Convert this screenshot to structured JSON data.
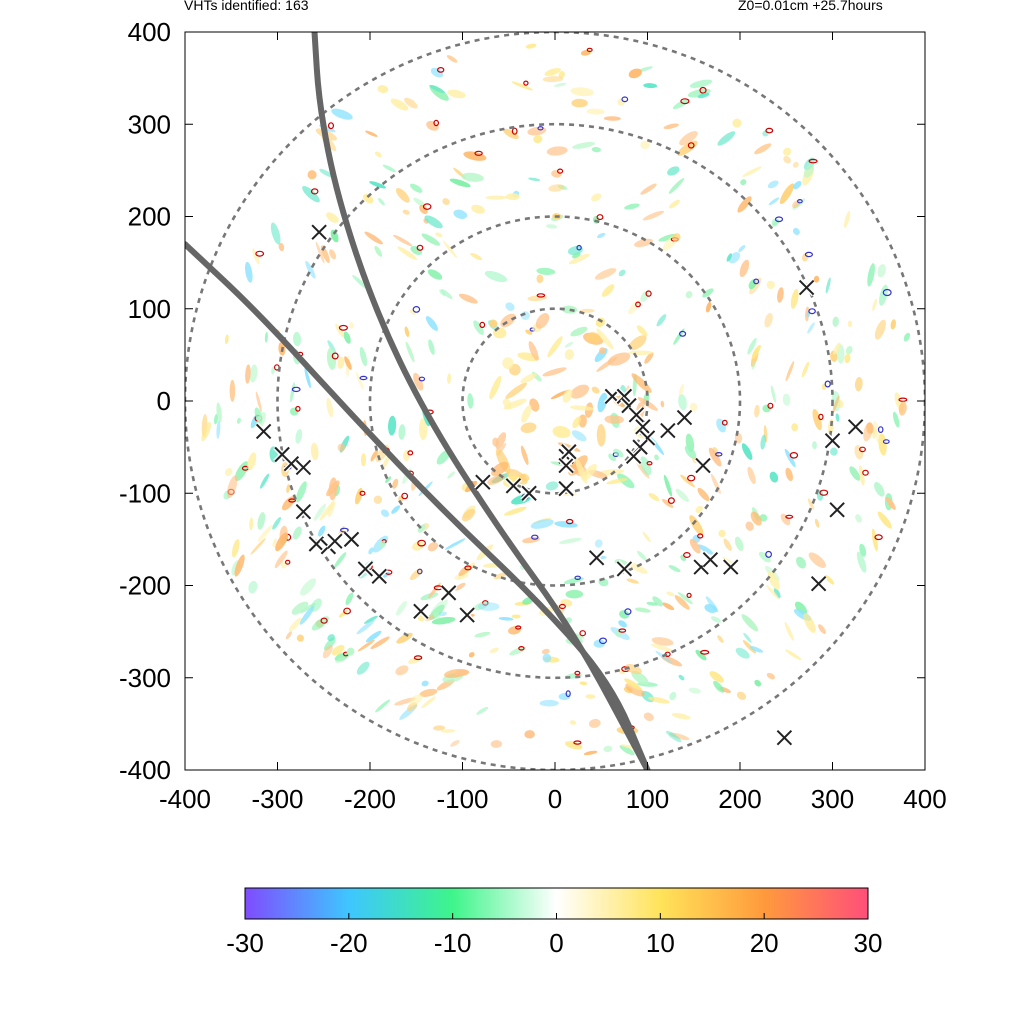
{
  "header": {
    "vht_text": "VHTs identified: 163",
    "run_text": "Z0=0.01cm  +25.7hours"
  },
  "colors": {
    "range_ring": "#777777",
    "track": "#666666",
    "contour_outer": "#cc0000",
    "contour_inner": "#3333cc",
    "vht_marker": "#222222",
    "colorbar_stops": [
      "#7f4cff",
      "#3ec6ff",
      "#3ef58a",
      "#ffffff",
      "#ffe35a",
      "#ff9a3c",
      "#ff4f7a"
    ]
  },
  "chart_data": {
    "type": "scatter",
    "title": "",
    "xlabel": "",
    "ylabel": "",
    "xlim": [
      -400,
      400
    ],
    "ylim": [
      -400,
      400
    ],
    "x_ticks": [
      -400,
      -300,
      -200,
      -100,
      0,
      100,
      200,
      300,
      400
    ],
    "y_ticks": [
      -400,
      -300,
      -200,
      -100,
      0,
      100,
      200,
      300,
      400
    ],
    "range_rings": [
      100,
      200,
      300,
      400
    ],
    "vht_count": 163,
    "vht_markers": [
      [
        -315,
        -33
      ],
      [
        -295,
        -58
      ],
      [
        -285,
        -68
      ],
      [
        -272,
        -72
      ],
      [
        -272,
        -120
      ],
      [
        -258,
        -155
      ],
      [
        -245,
        -158
      ],
      [
        -238,
        -152
      ],
      [
        -220,
        -150
      ],
      [
        -205,
        -182
      ],
      [
        -190,
        -190
      ],
      [
        -145,
        -228
      ],
      [
        -115,
        -208
      ],
      [
        -95,
        -232
      ],
      [
        -78,
        -88
      ],
      [
        -45,
        -92
      ],
      [
        -28,
        -100
      ],
      [
        12,
        -95
      ],
      [
        12,
        -60
      ],
      [
        12,
        -70
      ],
      [
        15,
        -55
      ],
      [
        62,
        5
      ],
      [
        75,
        5
      ],
      [
        80,
        -5
      ],
      [
        88,
        -15
      ],
      [
        95,
        -28
      ],
      [
        100,
        -40
      ],
      [
        92,
        -50
      ],
      [
        85,
        -60
      ],
      [
        122,
        -32
      ],
      [
        140,
        -18
      ],
      [
        160,
        -70
      ],
      [
        45,
        -170
      ],
      [
        75,
        -182
      ],
      [
        158,
        -180
      ],
      [
        168,
        -172
      ],
      [
        190,
        -180
      ],
      [
        272,
        123
      ],
      [
        300,
        -43
      ],
      [
        305,
        -118
      ],
      [
        325,
        -28
      ],
      [
        285,
        -198
      ],
      [
        248,
        -365
      ],
      [
        -255,
        183
      ]
    ],
    "storm_tracks": [
      {
        "points": [
          [
            -400,
            170
          ],
          [
            -320,
            95
          ],
          [
            -220,
            -15
          ],
          [
            -120,
            -120
          ],
          [
            -20,
            -215
          ],
          [
            60,
            -305
          ],
          [
            100,
            -400
          ]
        ]
      },
      {
        "points": [
          [
            -260,
            400
          ],
          [
            -255,
            320
          ],
          [
            -235,
            220
          ],
          [
            -195,
            100
          ],
          [
            -140,
            -15
          ],
          [
            -60,
            -140
          ],
          [
            20,
            -250
          ],
          [
            100,
            -400
          ]
        ]
      }
    ],
    "colorbar": {
      "min": -30,
      "max": 30,
      "ticks": [
        -30,
        -20,
        -10,
        0,
        10,
        20,
        30
      ]
    }
  }
}
